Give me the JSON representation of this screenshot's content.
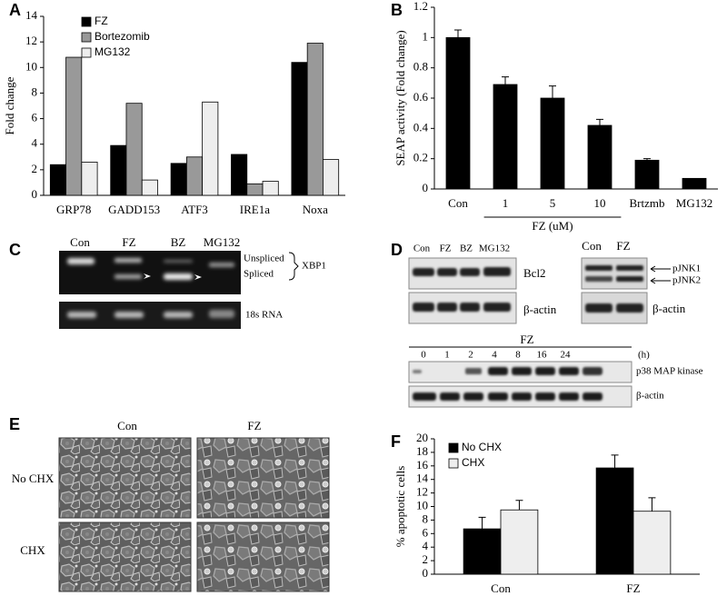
{
  "panel_labels": [
    "A",
    "B",
    "C",
    "D",
    "E",
    "F"
  ],
  "chart_data": [
    {
      "type": "bar",
      "ylabel": "Fold change",
      "categories": [
        "GRP78",
        "GADD153",
        "ATF3",
        "IRE1a",
        "Noxa"
      ],
      "series": [
        {
          "name": "FZ",
          "color": "#000000",
          "values": [
            2.4,
            3.9,
            2.5,
            3.2,
            10.4
          ]
        },
        {
          "name": "Bortezomib",
          "color": "#999999",
          "values": [
            10.8,
            7.2,
            3.0,
            0.9,
            11.9
          ]
        },
        {
          "name": "MG132",
          "color": "#eeeeee",
          "values": [
            2.6,
            1.2,
            7.3,
            1.1,
            2.8
          ]
        }
      ],
      "ylim": [
        0,
        14
      ],
      "yticks": [
        0,
        2,
        4,
        6,
        8,
        10,
        12,
        14
      ],
      "legend": "upper-left"
    },
    {
      "type": "bar",
      "ylabel": "SEAP activity (Fold change)",
      "categories": [
        "Con",
        "1",
        "5",
        "10",
        "Brtzmb",
        "MG132"
      ],
      "values": [
        1.0,
        0.69,
        0.6,
        0.42,
        0.19,
        0.07
      ],
      "errors": [
        0.05,
        0.05,
        0.08,
        0.04,
        0.01,
        null
      ],
      "color": "#000000",
      "group_label": "FZ (uM)",
      "ylim": [
        0,
        1.2
      ],
      "yticks": [
        0,
        0.2,
        0.4,
        0.6,
        0.8,
        1,
        1.2
      ]
    },
    {
      "type": "bar",
      "ylabel": "% apoptotic cells",
      "categories": [
        "Con",
        "FZ"
      ],
      "series": [
        {
          "name": "No CHX",
          "color": "#000000",
          "values": [
            6.7,
            15.7
          ],
          "errors": [
            1.7,
            1.9
          ]
        },
        {
          "name": "CHX",
          "color": "#eeeeee",
          "values": [
            9.5,
            9.3
          ],
          "errors": [
            1.4,
            2.0
          ]
        }
      ],
      "ylim": [
        0,
        20
      ],
      "yticks": [
        0,
        2,
        4,
        6,
        8,
        10,
        12,
        14,
        16,
        18,
        20
      ],
      "legend": "upper-left"
    }
  ],
  "gel": {
    "lanes": [
      "Con",
      "FZ",
      "BZ",
      "MG132"
    ],
    "unspliced": "Unspliced",
    "spliced": "Spliced",
    "gene": "XBP1",
    "control": "18s RNA"
  },
  "bcl2_blot": {
    "lanes": [
      "Con",
      "FZ",
      "BZ",
      "MG132"
    ],
    "target": "Bcl2",
    "loading": "β-actin"
  },
  "jnk_blot": {
    "lanes": [
      "Con",
      "FZ"
    ],
    "targets": [
      "pJNK1",
      "pJNK2"
    ],
    "loading": "β-actin"
  },
  "p38_blot": {
    "treatment": "FZ",
    "times": [
      0,
      1,
      2,
      4,
      8,
      16,
      24
    ],
    "unit": "(h)",
    "target": "p38 MAP kinase",
    "loading": "β-actin"
  },
  "micrographs": {
    "columns": [
      "Con",
      "FZ"
    ],
    "rows": [
      "No CHX",
      "CHX"
    ]
  }
}
